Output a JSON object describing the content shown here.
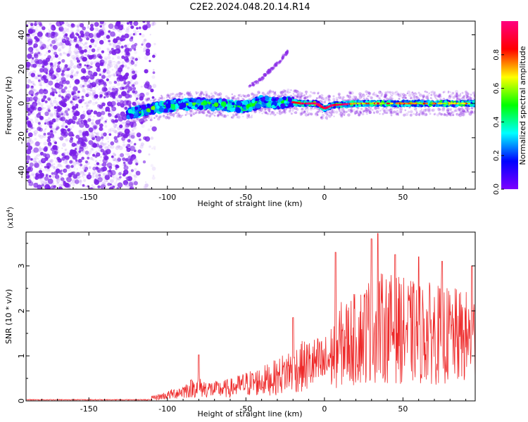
{
  "title": "C2E2.2024.048.20.14.R14",
  "chart_data": [
    {
      "type": "heatmap",
      "xlabel": "Height of straight line (km)",
      "ylabel": "Frequency (Hz)",
      "xlim": [
        -190,
        96
      ],
      "ylim": [
        -50,
        48
      ],
      "xticks": [
        "-150",
        "-100",
        "-50",
        "0",
        "50"
      ],
      "xtick_values": [
        -150,
        -100,
        -50,
        0,
        50
      ],
      "yticks": [
        "-40",
        "-20",
        "0",
        "20",
        "40"
      ],
      "ytick_values": [
        -40,
        -20,
        0,
        20,
        40
      ],
      "colorbar": {
        "label": "Normalized spectral amplitude",
        "range": [
          0,
          1
        ],
        "ticks": [
          "0.0",
          "0.2",
          "0.4",
          "0.6",
          "0.8"
        ],
        "tick_values": [
          0.0,
          0.2,
          0.4,
          0.6,
          0.8
        ],
        "colors": [
          "#7d00ff",
          "#0000ff",
          "#00ffff",
          "#00ff00",
          "#ffff00",
          "#ff0000",
          "#ff0080"
        ]
      },
      "features": {
        "noise_region_x": [
          -190,
          -120
        ],
        "noise_amplitude": 0.15,
        "signal_band": [
          [
            -125,
            -6
          ],
          [
            -110,
            -3
          ],
          [
            -95,
            -1
          ],
          [
            -80,
            0
          ],
          [
            -65,
            -1
          ],
          [
            -50,
            -2
          ],
          [
            -40,
            1
          ],
          [
            -30,
            0
          ],
          [
            -22,
            1
          ],
          [
            -15,
            0
          ],
          [
            -5,
            0
          ],
          [
            0,
            -3
          ],
          [
            5,
            -1
          ],
          [
            20,
            0
          ],
          [
            50,
            0
          ],
          [
            96,
            0
          ]
        ],
        "faint_arc": [
          [
            -48,
            10
          ],
          [
            -40,
            14
          ],
          [
            -35,
            19
          ],
          [
            -28,
            25
          ],
          [
            -23,
            31
          ]
        ]
      }
    },
    {
      "type": "line",
      "xlabel": "Height of straight line (km)",
      "ylabel": "SNR (10 * v/v)",
      "y_multiplier": "(x10",
      "y_multiplier_exp": "4",
      "y_multiplier_close": ")",
      "xlim": [
        -190,
        96
      ],
      "ylim": [
        0,
        3.75
      ],
      "xticks": [
        "-150",
        "-100",
        "-50",
        "0",
        "50"
      ],
      "xtick_values": [
        -150,
        -100,
        -50,
        0,
        50
      ],
      "yticks": [
        "0",
        "1",
        "2",
        "3"
      ],
      "ytick_values": [
        0,
        1,
        2,
        3
      ],
      "color": "#ee2a2a",
      "envelope": [
        [
          -190,
          0.02
        ],
        [
          -150,
          0.03
        ],
        [
          -120,
          0.05
        ],
        [
          -110,
          0.1
        ],
        [
          -100,
          0.2
        ],
        [
          -90,
          0.35
        ],
        [
          -82,
          0.5
        ],
        [
          -78,
          0.45
        ],
        [
          -70,
          0.4
        ],
        [
          -60,
          0.45
        ],
        [
          -50,
          0.6
        ],
        [
          -40,
          0.7
        ],
        [
          -30,
          0.85
        ],
        [
          -22,
          1.1
        ],
        [
          -15,
          1.2
        ],
        [
          -8,
          1.3
        ],
        [
          0,
          1.3
        ],
        [
          5,
          1.6
        ],
        [
          10,
          2.0
        ],
        [
          20,
          2.2
        ],
        [
          30,
          2.6
        ],
        [
          40,
          2.6
        ],
        [
          50,
          2.5
        ],
        [
          60,
          2.4
        ],
        [
          70,
          2.4
        ],
        [
          80,
          2.3
        ],
        [
          96,
          2.2
        ]
      ],
      "peaks": [
        [
          -80,
          1.02
        ],
        [
          -20,
          1.85
        ],
        [
          7,
          3.3
        ],
        [
          30,
          3.6
        ],
        [
          34,
          3.72
        ],
        [
          45,
          3.25
        ],
        [
          60,
          3.2
        ],
        [
          75,
          3.1
        ],
        [
          94,
          3.0
        ]
      ]
    }
  ]
}
